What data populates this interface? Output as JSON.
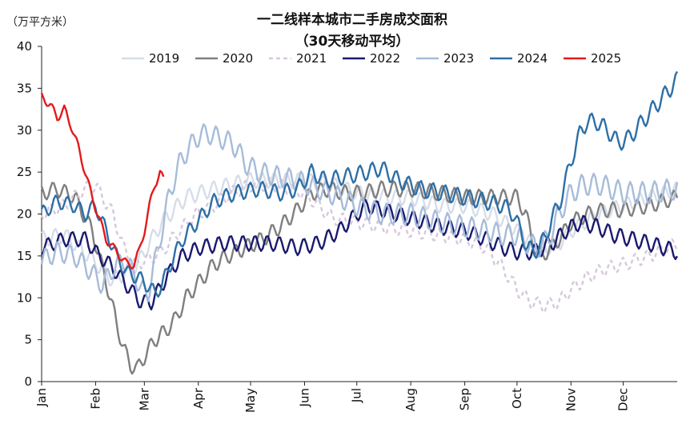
{
  "chart_data": {
    "type": "line",
    "title": "一二线样本城市二手房成交面积",
    "subtitle": "（30天移动平均）",
    "unit_label": "（万平方米）",
    "xlabel": "",
    "ylabel": "",
    "ylim": [
      0,
      40
    ],
    "yticks": [
      0,
      5,
      10,
      15,
      20,
      25,
      30,
      35,
      40
    ],
    "xlim": [
      1,
      366
    ],
    "month_labels": [
      "Jan",
      "Feb",
      "Mar",
      "Apr",
      "May",
      "Jun",
      "Jul",
      "Aug",
      "Sep",
      "Oct",
      "Nov",
      "Dec"
    ],
    "month_days": [
      1,
      32,
      60,
      91,
      121,
      152,
      182,
      213,
      244,
      274,
      305,
      335
    ],
    "grid": false,
    "legend_position": "top",
    "series": [
      {
        "name": "2019",
        "color": "#d6dde9",
        "dash": "",
        "noise": 0.7,
        "points": [
          [
            1,
            17
          ],
          [
            14,
            17.5
          ],
          [
            28,
            15
          ],
          [
            42,
            12
          ],
          [
            56,
            14
          ],
          [
            70,
            19
          ],
          [
            84,
            22
          ],
          [
            100,
            23
          ],
          [
            120,
            24
          ],
          [
            140,
            24
          ],
          [
            152,
            24
          ],
          [
            168,
            23.5
          ],
          [
            182,
            22.5
          ],
          [
            200,
            22
          ],
          [
            213,
            22
          ],
          [
            230,
            21
          ],
          [
            244,
            21
          ],
          [
            260,
            20
          ],
          [
            274,
            18
          ],
          [
            285,
            16
          ],
          [
            296,
            16
          ],
          [
            305,
            18
          ],
          [
            320,
            20
          ],
          [
            335,
            21
          ],
          [
            350,
            22
          ],
          [
            366,
            23
          ]
        ]
      },
      {
        "name": "2020",
        "color": "#7f7f7f",
        "dash": "",
        "noise": 0.7,
        "points": [
          [
            1,
            22.5
          ],
          [
            10,
            23
          ],
          [
            20,
            22
          ],
          [
            30,
            18
          ],
          [
            38,
            12
          ],
          [
            44,
            7
          ],
          [
            48,
            4
          ],
          [
            52,
            2
          ],
          [
            56,
            1.5
          ],
          [
            60,
            3
          ],
          [
            66,
            5
          ],
          [
            72,
            6
          ],
          [
            78,
            7.5
          ],
          [
            84,
            10
          ],
          [
            92,
            12
          ],
          [
            100,
            14
          ],
          [
            108,
            15
          ],
          [
            118,
            16
          ],
          [
            128,
            17
          ],
          [
            138,
            18.5
          ],
          [
            148,
            20.5
          ],
          [
            156,
            22.5
          ],
          [
            166,
            23
          ],
          [
            176,
            22.5
          ],
          [
            186,
            22.5
          ],
          [
            196,
            23
          ],
          [
            213,
            23
          ],
          [
            230,
            22.5
          ],
          [
            244,
            22
          ],
          [
            260,
            22
          ],
          [
            274,
            22
          ],
          [
            279,
            20
          ],
          [
            284,
            16
          ],
          [
            288,
            15
          ],
          [
            294,
            16
          ],
          [
            300,
            17.5
          ],
          [
            305,
            19
          ],
          [
            315,
            20
          ],
          [
            325,
            20.5
          ],
          [
            335,
            20.5
          ],
          [
            350,
            21
          ],
          [
            366,
            22
          ]
        ]
      },
      {
        "name": "2021",
        "color": "#d6c8dc",
        "dash": "5,4",
        "noise": 0.6,
        "points": [
          [
            1,
            20
          ],
          [
            14,
            21
          ],
          [
            26,
            23
          ],
          [
            32,
            23.5
          ],
          [
            36,
            22
          ],
          [
            42,
            20
          ],
          [
            48,
            16
          ],
          [
            54,
            14
          ],
          [
            62,
            14.5
          ],
          [
            70,
            15.5
          ],
          [
            80,
            18
          ],
          [
            90,
            20
          ],
          [
            100,
            21
          ],
          [
            110,
            22.5
          ],
          [
            122,
            23.5
          ],
          [
            134,
            23.5
          ],
          [
            144,
            23
          ],
          [
            152,
            22.5
          ],
          [
            160,
            21
          ],
          [
            168,
            19.5
          ],
          [
            182,
            19
          ],
          [
            196,
            18.5
          ],
          [
            213,
            18
          ],
          [
            230,
            17.5
          ],
          [
            244,
            17
          ],
          [
            256,
            16
          ],
          [
            266,
            13.5
          ],
          [
            274,
            11
          ],
          [
            282,
            9.5
          ],
          [
            290,
            9
          ],
          [
            298,
            9.5
          ],
          [
            305,
            11
          ],
          [
            315,
            12.5
          ],
          [
            325,
            13.5
          ],
          [
            335,
            14
          ],
          [
            350,
            15
          ],
          [
            366,
            16.5
          ]
        ]
      },
      {
        "name": "2022",
        "color": "#1a1a6e",
        "dash": "",
        "noise": 0.7,
        "points": [
          [
            1,
            16
          ],
          [
            14,
            17
          ],
          [
            26,
            17
          ],
          [
            34,
            15
          ],
          [
            40,
            14
          ],
          [
            46,
            12.5
          ],
          [
            52,
            11
          ],
          [
            58,
            9.5
          ],
          [
            64,
            9.5
          ],
          [
            70,
            11.5
          ],
          [
            76,
            13.5
          ],
          [
            82,
            15
          ],
          [
            92,
            16
          ],
          [
            106,
            16.5
          ],
          [
            120,
            16.5
          ],
          [
            134,
            16.5
          ],
          [
            148,
            16
          ],
          [
            160,
            16.5
          ],
          [
            172,
            18
          ],
          [
            182,
            20
          ],
          [
            188,
            21
          ],
          [
            196,
            20.5
          ],
          [
            213,
            19.5
          ],
          [
            230,
            18.5
          ],
          [
            244,
            18
          ],
          [
            256,
            17
          ],
          [
            266,
            16
          ],
          [
            274,
            15.5
          ],
          [
            284,
            15.5
          ],
          [
            294,
            16.5
          ],
          [
            302,
            18
          ],
          [
            310,
            19
          ],
          [
            320,
            18.5
          ],
          [
            330,
            17.5
          ],
          [
            340,
            17
          ],
          [
            350,
            16.5
          ],
          [
            366,
            15.5
          ]
        ]
      },
      {
        "name": "2023",
        "color": "#a7bcd9",
        "dash": "",
        "noise": 1.0,
        "points": [
          [
            1,
            14.5
          ],
          [
            10,
            15.5
          ],
          [
            20,
            15
          ],
          [
            30,
            13
          ],
          [
            36,
            11.5
          ],
          [
            42,
            13.5
          ],
          [
            48,
            14.5
          ],
          [
            54,
            13
          ],
          [
            58,
            11
          ],
          [
            62,
            10.5
          ],
          [
            68,
            16
          ],
          [
            74,
            22
          ],
          [
            80,
            26
          ],
          [
            86,
            28
          ],
          [
            92,
            29.5
          ],
          [
            98,
            29.5
          ],
          [
            104,
            29
          ],
          [
            110,
            28.5
          ],
          [
            114,
            27.5
          ],
          [
            118,
            26
          ],
          [
            126,
            25
          ],
          [
            136,
            24.5
          ],
          [
            148,
            24
          ],
          [
            160,
            23
          ],
          [
            172,
            22
          ],
          [
            182,
            21
          ],
          [
            196,
            20
          ],
          [
            213,
            20
          ],
          [
            230,
            19
          ],
          [
            244,
            18.5
          ],
          [
            256,
            18
          ],
          [
            266,
            17.5
          ],
          [
            274,
            17.5
          ],
          [
            280,
            16.5
          ],
          [
            286,
            16
          ],
          [
            292,
            17
          ],
          [
            298,
            20
          ],
          [
            305,
            22.5
          ],
          [
            312,
            23.5
          ],
          [
            322,
            23.5
          ],
          [
            335,
            22.5
          ],
          [
            350,
            22.5
          ],
          [
            366,
            23
          ]
        ]
      },
      {
        "name": "2024",
        "color": "#2e6fa7",
        "dash": "",
        "noise": 0.8,
        "points": [
          [
            1,
            20
          ],
          [
            10,
            21.5
          ],
          [
            20,
            21
          ],
          [
            26,
            20
          ],
          [
            32,
            21
          ],
          [
            38,
            18
          ],
          [
            44,
            15
          ],
          [
            50,
            13
          ],
          [
            56,
            12.5
          ],
          [
            62,
            11.5
          ],
          [
            66,
            10.5
          ],
          [
            70,
            11.5
          ],
          [
            76,
            14.5
          ],
          [
            82,
            17
          ],
          [
            90,
            19
          ],
          [
            100,
            21.5
          ],
          [
            112,
            22.5
          ],
          [
            126,
            23
          ],
          [
            138,
            22.5
          ],
          [
            148,
            23
          ],
          [
            156,
            25
          ],
          [
            164,
            24
          ],
          [
            176,
            24.5
          ],
          [
            188,
            25
          ],
          [
            196,
            25.5
          ],
          [
            206,
            24
          ],
          [
            218,
            23
          ],
          [
            232,
            22.5
          ],
          [
            244,
            22
          ],
          [
            256,
            21.5
          ],
          [
            266,
            21
          ],
          [
            272,
            20
          ],
          [
            276,
            18
          ],
          [
            280,
            16
          ],
          [
            284,
            15.5
          ],
          [
            290,
            17
          ],
          [
            294,
            19.5
          ],
          [
            298,
            21
          ],
          [
            302,
            24
          ],
          [
            306,
            27
          ],
          [
            310,
            29.5
          ],
          [
            314,
            31
          ],
          [
            320,
            31
          ],
          [
            326,
            30
          ],
          [
            332,
            28.5
          ],
          [
            338,
            29
          ],
          [
            344,
            30.5
          ],
          [
            350,
            32
          ],
          [
            356,
            33.5
          ],
          [
            362,
            35
          ],
          [
            366,
            36
          ]
        ]
      },
      {
        "name": "2025",
        "color": "#e31a1c",
        "dash": "",
        "noise": 0.5,
        "points": [
          [
            1,
            34
          ],
          [
            6,
            33
          ],
          [
            10,
            31.5
          ],
          [
            14,
            32.5
          ],
          [
            18,
            30.5
          ],
          [
            22,
            28
          ],
          [
            26,
            25
          ],
          [
            30,
            22
          ],
          [
            34,
            19.5
          ],
          [
            38,
            17
          ],
          [
            42,
            16
          ],
          [
            46,
            15
          ],
          [
            50,
            14
          ],
          [
            54,
            14
          ],
          [
            57,
            15.5
          ],
          [
            60,
            18
          ],
          [
            63,
            21
          ],
          [
            66,
            23.5
          ],
          [
            69,
            25
          ],
          [
            71,
            24
          ]
        ]
      }
    ]
  }
}
